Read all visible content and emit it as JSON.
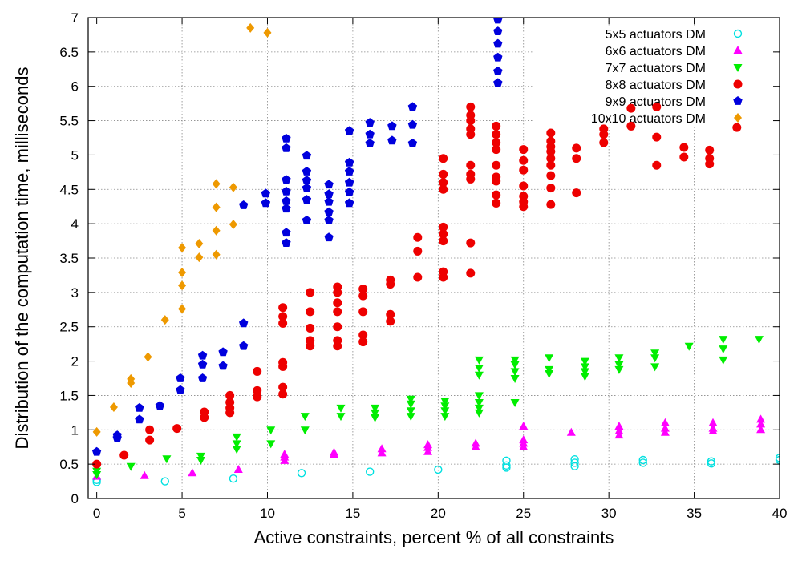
{
  "chart_data": {
    "type": "scatter",
    "title": "",
    "xlabel": "Active constraints, percent % of all constraints",
    "ylabel": "Distribution of the computation time, milliseconds",
    "xlim": [
      -0.5,
      40
    ],
    "ylim": [
      0,
      7
    ],
    "x_ticks": [
      0,
      5,
      10,
      15,
      20,
      25,
      30,
      35,
      40
    ],
    "y_ticks": [
      0,
      0.5,
      1,
      1.5,
      2,
      2.5,
      3,
      3.5,
      4,
      4.5,
      5,
      5.5,
      6,
      6.5,
      7
    ],
    "grid": true,
    "legend": "top-right",
    "series": [
      {
        "name": "5x5 actuators DM",
        "color": "#00e0e0",
        "marker": "open-circle",
        "points": [
          [
            0,
            0.24
          ],
          [
            0,
            0.27
          ],
          [
            4,
            0.25
          ],
          [
            8,
            0.29
          ],
          [
            12,
            0.37
          ],
          [
            16,
            0.39
          ],
          [
            20,
            0.42
          ],
          [
            24,
            0.45
          ],
          [
            24,
            0.48
          ],
          [
            24,
            0.55
          ],
          [
            28,
            0.47
          ],
          [
            28,
            0.52
          ],
          [
            28,
            0.57
          ],
          [
            32,
            0.52
          ],
          [
            32,
            0.56
          ],
          [
            36,
            0.51
          ],
          [
            36,
            0.54
          ],
          [
            40,
            0.56
          ],
          [
            40,
            0.59
          ]
        ]
      },
      {
        "name": "6x6 actuators DM",
        "color": "#ff00ff",
        "marker": "triangle-up",
        "points": [
          [
            0,
            0.32
          ],
          [
            2.8,
            0.33
          ],
          [
            5.6,
            0.37
          ],
          [
            8.3,
            0.42
          ],
          [
            11,
            0.55
          ],
          [
            11,
            0.6
          ],
          [
            11,
            0.64
          ],
          [
            13.9,
            0.64
          ],
          [
            13.9,
            0.67
          ],
          [
            16.7,
            0.66
          ],
          [
            16.7,
            0.72
          ],
          [
            19.4,
            0.68
          ],
          [
            19.4,
            0.74
          ],
          [
            19.4,
            0.78
          ],
          [
            22.2,
            0.75
          ],
          [
            22.2,
            0.8
          ],
          [
            25,
            0.75
          ],
          [
            25,
            0.8
          ],
          [
            25,
            0.85
          ],
          [
            25,
            1.05
          ],
          [
            27.8,
            0.96
          ],
          [
            30.6,
            0.92
          ],
          [
            30.6,
            0.98
          ],
          [
            30.6,
            1.05
          ],
          [
            33.3,
            0.96
          ],
          [
            33.3,
            1.02
          ],
          [
            33.3,
            1.1
          ],
          [
            36.1,
            0.98
          ],
          [
            36.1,
            1.02
          ],
          [
            36.1,
            1.1
          ],
          [
            38.9,
            1.0
          ],
          [
            38.9,
            1.08
          ],
          [
            38.9,
            1.15
          ]
        ]
      },
      {
        "name": "7x7 actuators DM",
        "color": "#00ee00",
        "marker": "triangle-down",
        "points": [
          [
            0,
            0.35
          ],
          [
            0,
            0.4
          ],
          [
            2,
            0.47
          ],
          [
            4.1,
            0.58
          ],
          [
            6.1,
            0.56
          ],
          [
            6.1,
            0.62
          ],
          [
            8.2,
            0.72
          ],
          [
            8.2,
            0.8
          ],
          [
            8.2,
            0.9
          ],
          [
            10.2,
            0.8
          ],
          [
            10.2,
            1.0
          ],
          [
            12.2,
            1.0
          ],
          [
            12.2,
            1.2
          ],
          [
            14.3,
            1.2
          ],
          [
            14.3,
            1.32
          ],
          [
            16.3,
            1.18
          ],
          [
            16.3,
            1.25
          ],
          [
            16.3,
            1.32
          ],
          [
            18.4,
            1.2
          ],
          [
            18.4,
            1.28
          ],
          [
            18.4,
            1.38
          ],
          [
            18.4,
            1.45
          ],
          [
            20.4,
            1.2
          ],
          [
            20.4,
            1.28
          ],
          [
            20.4,
            1.35
          ],
          [
            20.4,
            1.42
          ],
          [
            22.4,
            1.25
          ],
          [
            22.4,
            1.32
          ],
          [
            22.4,
            1.4
          ],
          [
            22.4,
            1.5
          ],
          [
            22.4,
            1.8
          ],
          [
            22.4,
            1.9
          ],
          [
            22.4,
            2.02
          ],
          [
            24.5,
            1.4
          ],
          [
            24.5,
            1.75
          ],
          [
            24.5,
            1.85
          ],
          [
            24.5,
            1.95
          ],
          [
            24.5,
            2.02
          ],
          [
            26.5,
            1.82
          ],
          [
            26.5,
            1.88
          ],
          [
            26.5,
            2.05
          ],
          [
            28.6,
            1.78
          ],
          [
            28.6,
            1.85
          ],
          [
            28.6,
            1.92
          ],
          [
            28.6,
            2.0
          ],
          [
            30.6,
            1.88
          ],
          [
            30.6,
            1.95
          ],
          [
            30.6,
            2.05
          ],
          [
            32.7,
            1.92
          ],
          [
            32.7,
            2.05
          ],
          [
            32.7,
            2.12
          ],
          [
            34.7,
            2.22
          ],
          [
            36.7,
            2.02
          ],
          [
            36.7,
            2.18
          ],
          [
            36.7,
            2.32
          ],
          [
            38.8,
            2.32
          ]
        ]
      },
      {
        "name": "8x8 actuators DM",
        "color": "#ee0000",
        "marker": "filled-circle",
        "points": [
          [
            0,
            0.5
          ],
          [
            1.6,
            0.63
          ],
          [
            3.1,
            0.85
          ],
          [
            3.1,
            1.0
          ],
          [
            4.7,
            1.02
          ],
          [
            6.3,
            1.18
          ],
          [
            6.3,
            1.26
          ],
          [
            7.8,
            1.25
          ],
          [
            7.8,
            1.32
          ],
          [
            7.8,
            1.4
          ],
          [
            7.8,
            1.5
          ],
          [
            9.4,
            1.48
          ],
          [
            9.4,
            1.57
          ],
          [
            9.4,
            1.85
          ],
          [
            10.9,
            1.52
          ],
          [
            10.9,
            1.62
          ],
          [
            10.9,
            1.92
          ],
          [
            10.9,
            1.98
          ],
          [
            10.9,
            2.55
          ],
          [
            10.9,
            2.65
          ],
          [
            10.9,
            2.78
          ],
          [
            12.5,
            2.22
          ],
          [
            12.5,
            2.3
          ],
          [
            12.5,
            2.48
          ],
          [
            12.5,
            2.72
          ],
          [
            12.5,
            3.0
          ],
          [
            14.1,
            2.22
          ],
          [
            14.1,
            2.3
          ],
          [
            14.1,
            2.5
          ],
          [
            14.1,
            2.72
          ],
          [
            14.1,
            2.85
          ],
          [
            14.1,
            3.0
          ],
          [
            14.1,
            3.08
          ],
          [
            15.6,
            2.28
          ],
          [
            15.6,
            2.38
          ],
          [
            15.6,
            2.72
          ],
          [
            15.6,
            2.95
          ],
          [
            15.6,
            3.05
          ],
          [
            17.2,
            2.58
          ],
          [
            17.2,
            2.68
          ],
          [
            17.2,
            3.12
          ],
          [
            17.2,
            3.18
          ],
          [
            18.8,
            3.22
          ],
          [
            18.8,
            3.6
          ],
          [
            18.8,
            3.8
          ],
          [
            20.3,
            3.22
          ],
          [
            20.3,
            3.3
          ],
          [
            20.3,
            3.75
          ],
          [
            20.3,
            3.85
          ],
          [
            20.3,
            3.95
          ],
          [
            20.3,
            4.5
          ],
          [
            20.3,
            4.6
          ],
          [
            20.3,
            4.72
          ],
          [
            20.3,
            4.95
          ],
          [
            21.9,
            3.28
          ],
          [
            21.9,
            3.72
          ],
          [
            21.9,
            4.65
          ],
          [
            21.9,
            4.72
          ],
          [
            21.9,
            4.85
          ],
          [
            21.9,
            5.3
          ],
          [
            21.9,
            5.38
          ],
          [
            21.9,
            5.5
          ],
          [
            21.9,
            5.58
          ],
          [
            21.9,
            5.7
          ],
          [
            23.4,
            4.3
          ],
          [
            23.4,
            4.42
          ],
          [
            23.4,
            4.62
          ],
          [
            23.4,
            4.68
          ],
          [
            23.4,
            4.85
          ],
          [
            23.4,
            5.08
          ],
          [
            23.4,
            5.18
          ],
          [
            23.4,
            5.3
          ],
          [
            23.4,
            5.42
          ],
          [
            25,
            4.25
          ],
          [
            25,
            4.32
          ],
          [
            25,
            4.4
          ],
          [
            25,
            4.55
          ],
          [
            25,
            4.78
          ],
          [
            25,
            4.92
          ],
          [
            25,
            5.08
          ],
          [
            26.6,
            4.28
          ],
          [
            26.6,
            4.52
          ],
          [
            26.6,
            4.7
          ],
          [
            26.6,
            4.85
          ],
          [
            26.6,
            4.95
          ],
          [
            26.6,
            5.05
          ],
          [
            26.6,
            5.12
          ],
          [
            26.6,
            5.2
          ],
          [
            26.6,
            5.32
          ],
          [
            28.1,
            4.45
          ],
          [
            28.1,
            4.95
          ],
          [
            28.1,
            5.1
          ],
          [
            29.7,
            5.18
          ],
          [
            29.7,
            5.3
          ],
          [
            29.7,
            5.38
          ],
          [
            31.3,
            5.42
          ],
          [
            31.3,
            5.68
          ],
          [
            32.8,
            4.85
          ],
          [
            32.8,
            5.26
          ],
          [
            32.8,
            5.7
          ],
          [
            34.4,
            4.97
          ],
          [
            34.4,
            5.11
          ],
          [
            35.9,
            4.87
          ],
          [
            35.9,
            4.95
          ],
          [
            35.9,
            5.07
          ],
          [
            37.5,
            5.4
          ]
        ]
      },
      {
        "name": "9x9 actuators DM",
        "color": "#0000dd",
        "marker": "pentagon",
        "points": [
          [
            0,
            0.68
          ],
          [
            1.2,
            0.88
          ],
          [
            1.2,
            0.92
          ],
          [
            2.5,
            1.15
          ],
          [
            2.5,
            1.32
          ],
          [
            3.7,
            1.35
          ],
          [
            4.9,
            1.58
          ],
          [
            4.9,
            1.75
          ],
          [
            6.2,
            1.75
          ],
          [
            6.2,
            1.95
          ],
          [
            6.2,
            2.08
          ],
          [
            7.4,
            1.93
          ],
          [
            7.4,
            2.13
          ],
          [
            8.6,
            2.22
          ],
          [
            8.6,
            2.55
          ],
          [
            8.6,
            4.27
          ],
          [
            9.9,
            4.3
          ],
          [
            9.9,
            4.44
          ],
          [
            11.1,
            3.72
          ],
          [
            11.1,
            3.87
          ],
          [
            11.1,
            4.22
          ],
          [
            11.1,
            4.33
          ],
          [
            11.1,
            4.47
          ],
          [
            11.1,
            4.64
          ],
          [
            11.1,
            5.1
          ],
          [
            11.1,
            5.24
          ],
          [
            12.3,
            4.05
          ],
          [
            12.3,
            4.35
          ],
          [
            12.3,
            4.52
          ],
          [
            12.3,
            4.63
          ],
          [
            12.3,
            4.76
          ],
          [
            12.3,
            4.99
          ],
          [
            13.6,
            3.8
          ],
          [
            13.6,
            4.05
          ],
          [
            13.6,
            4.17
          ],
          [
            13.6,
            4.32
          ],
          [
            13.6,
            4.43
          ],
          [
            13.6,
            4.57
          ],
          [
            14.8,
            4.3
          ],
          [
            14.8,
            4.46
          ],
          [
            14.8,
            4.6
          ],
          [
            14.8,
            4.76
          ],
          [
            14.8,
            4.89
          ],
          [
            14.8,
            5.35
          ],
          [
            16,
            5.17
          ],
          [
            16,
            5.3
          ],
          [
            16,
            5.47
          ],
          [
            17.3,
            5.21
          ],
          [
            17.3,
            5.42
          ],
          [
            18.5,
            5.17
          ],
          [
            18.5,
            5.44
          ],
          [
            18.5,
            5.7
          ],
          [
            23.5,
            6.05
          ],
          [
            23.5,
            6.22
          ],
          [
            23.5,
            6.42
          ],
          [
            23.5,
            6.62
          ],
          [
            23.5,
            6.8
          ],
          [
            23.5,
            6.97
          ]
        ]
      },
      {
        "name": "10x10 actuators DM",
        "color": "#ee9900",
        "marker": "diamond",
        "points": [
          [
            0,
            0.97
          ],
          [
            1,
            1.33
          ],
          [
            2,
            1.68
          ],
          [
            2,
            1.74
          ],
          [
            3,
            2.06
          ],
          [
            4,
            2.6
          ],
          [
            5,
            2.76
          ],
          [
            5,
            3.1
          ],
          [
            5,
            3.29
          ],
          [
            5,
            3.65
          ],
          [
            6,
            3.51
          ],
          [
            6,
            3.71
          ],
          [
            7,
            3.55
          ],
          [
            7,
            3.9
          ],
          [
            7,
            4.24
          ],
          [
            7,
            4.58
          ],
          [
            8,
            3.99
          ],
          [
            8,
            4.53
          ],
          [
            9,
            6.85
          ],
          [
            10,
            6.78
          ]
        ]
      }
    ]
  }
}
